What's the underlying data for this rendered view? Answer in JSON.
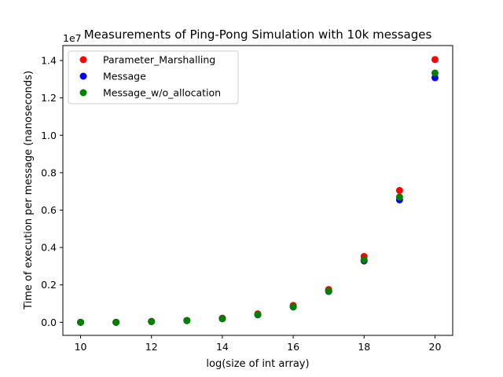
{
  "chart_data": {
    "type": "scatter",
    "title": "Measurements of Ping-Pong Simulation with 10k messages",
    "xlabel": "log(size of int array)",
    "ylabel": "Time of execution per message (nanoseconds)",
    "y_offset_label": "1e7",
    "xlim": [
      9.5,
      20.5
    ],
    "ylim": [
      -0.07,
      1.48
    ],
    "x_ticks": [
      10,
      12,
      14,
      16,
      18,
      20
    ],
    "x_tick_labels": [
      "10",
      "12",
      "14",
      "16",
      "18",
      "20"
    ],
    "y_ticks": [
      0.0,
      0.2,
      0.4,
      0.6,
      0.8,
      1.0,
      1.2,
      1.4
    ],
    "y_tick_labels": [
      "0.0",
      "0.2",
      "0.4",
      "0.6",
      "0.8",
      "1.0",
      "1.2",
      "1.4"
    ],
    "grid": false,
    "legend_position": "upper-left",
    "x": [
      10,
      11,
      12,
      13,
      14,
      15,
      16,
      17,
      18,
      19,
      20
    ],
    "series": [
      {
        "name": "Parameter_Marshalling",
        "color": "#ff0000",
        "values": [
          0.0,
          0.0,
          0.005,
          0.01,
          0.022,
          0.045,
          0.09,
          0.175,
          0.352,
          0.705,
          1.405
        ]
      },
      {
        "name": "Message",
        "color": "#0000ff",
        "values": [
          0.0,
          0.0,
          0.004,
          0.009,
          0.019,
          0.04,
          0.082,
          0.165,
          0.328,
          0.655,
          1.308
        ]
      },
      {
        "name": "Message_w/o_allocation",
        "color": "#008000",
        "values": [
          0.0,
          0.0,
          0.004,
          0.009,
          0.019,
          0.041,
          0.083,
          0.167,
          0.333,
          0.67,
          1.333
        ]
      }
    ]
  }
}
